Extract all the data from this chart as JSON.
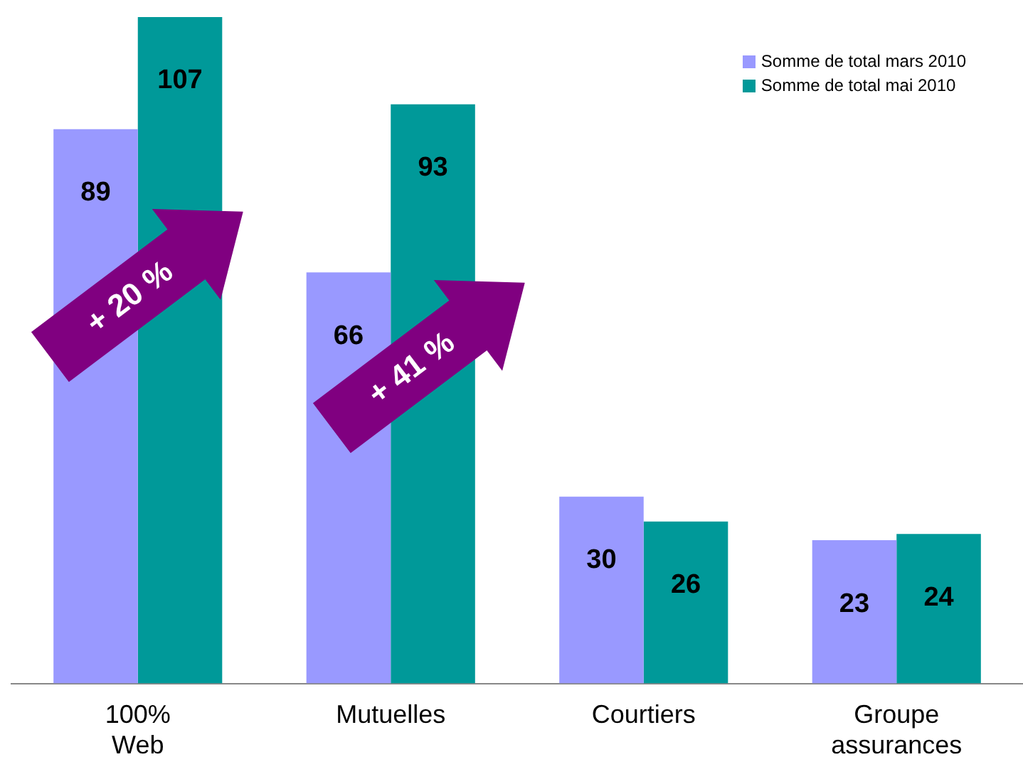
{
  "chart_data": {
    "type": "bar",
    "categories": [
      "100%\nWeb",
      "Mutuelles",
      "Courtiers",
      "Groupe\nassurances"
    ],
    "series": [
      {
        "name": "Somme de total mars 2010",
        "color": "#9999ff",
        "values": [
          89,
          66,
          30,
          23
        ]
      },
      {
        "name": "Somme de total mai 2010",
        "color": "#009999",
        "values": [
          107,
          93,
          26,
          24
        ]
      }
    ],
    "data_labels": true,
    "ylim": [
      0,
      107
    ],
    "tick_labels": "x",
    "grid": false,
    "legend": "top right",
    "annotations": [
      "+ 20 %",
      "+ 41 %"
    ]
  }
}
